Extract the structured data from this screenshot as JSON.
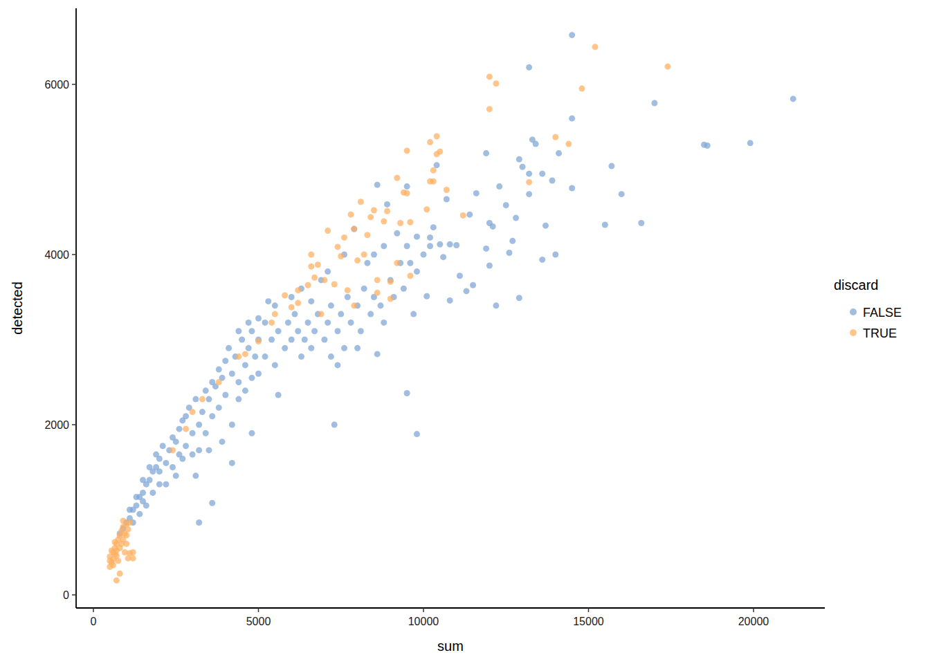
{
  "chart_data": {
    "type": "scatter",
    "x_label": "sum",
    "y_label": "detected",
    "legend_title": "discard",
    "legend": "right",
    "grid": false,
    "xlim": [
      -524,
      22160
    ],
    "ylim": [
      -154,
      6894
    ],
    "xticks": [
      0,
      5000,
      10000,
      15000,
      20000
    ],
    "yticks": [
      0,
      2000,
      4000,
      6000
    ],
    "series": [
      {
        "name": "FALSE",
        "color": "#7da5d6",
        "marker": "circle",
        "x": [
          14500,
          13200,
          21200,
          17000,
          14500,
          18500,
          18600,
          19900,
          13300,
          13400,
          11900,
          14100,
          12900,
          13000,
          15700,
          10400,
          13200,
          13600,
          13900,
          12300,
          14500,
          11600,
          13200,
          16000,
          12500,
          10700,
          11400,
          12800,
          12000,
          16600,
          15500,
          13700,
          12100,
          10300,
          11900,
          12600,
          13600,
          14000,
          12700,
          10500,
          10800,
          11000,
          10600,
          11100,
          11500,
          11300,
          12000,
          12200,
          12900,
          10800,
          10100,
          9500,
          9800,
          7300,
          8600,
          8600,
          8900,
          9500,
          9800,
          3200,
          3600,
          4200,
          4800,
          5600,
          1100,
          1200,
          1300,
          1400,
          1500,
          1600,
          1700,
          1800,
          1900,
          2000,
          1200,
          1400,
          1600,
          1800,
          2000,
          1300,
          1500,
          1700,
          1900,
          2100,
          1100,
          2000,
          2200,
          2300,
          2400,
          2500,
          2600,
          2700,
          2800,
          2900,
          2200,
          2400,
          2600,
          2800,
          3000,
          3100,
          3200,
          3300,
          3400,
          3500,
          3600,
          3700,
          3800,
          3900,
          4000,
          3200,
          3400,
          3600,
          3800,
          4000,
          4100,
          4200,
          4300,
          4400,
          4500,
          4600,
          4700,
          4800,
          4900,
          5000,
          4400,
          4600,
          4800,
          5000,
          5200,
          5200,
          5400,
          5500,
          5600,
          5800,
          5900,
          6000,
          6100,
          6200,
          6300,
          6400,
          6500,
          6600,
          6700,
          6800,
          7000,
          7100,
          7200,
          7400,
          7500,
          7600,
          7700,
          7800,
          8000,
          8100,
          8200,
          8400,
          8500,
          8700,
          8800,
          9000,
          9100,
          9300,
          9400,
          9600,
          9700,
          9800,
          10000,
          10200,
          7200,
          7400,
          8000,
          5000,
          5500,
          6000,
          6300,
          6600,
          5300,
          4700,
          4400,
          1500,
          2500,
          2700,
          3000,
          3100,
          3500,
          3900,
          4200,
          8300,
          8800,
          9200,
          7900,
          7600,
          6900,
          7100,
          8500,
          9500,
          10200,
          900,
          1000,
          800
        ],
        "values": [
          6580,
          6200,
          5830,
          5780,
          5600,
          5290,
          5280,
          5310,
          5350,
          5300,
          5190,
          5190,
          5120,
          5030,
          5040,
          5050,
          4950,
          4950,
          4870,
          4800,
          4780,
          4720,
          4710,
          4710,
          4580,
          4650,
          4470,
          4430,
          4370,
          4370,
          4350,
          4340,
          4330,
          4320,
          4070,
          4020,
          3940,
          4000,
          4160,
          4120,
          4120,
          4110,
          3970,
          3750,
          3640,
          3570,
          3870,
          3400,
          3490,
          3460,
          3510,
          2370,
          1890,
          2000,
          2830,
          4820,
          4590,
          4800,
          4210,
          850,
          1080,
          1550,
          1900,
          2350,
          900,
          1000,
          1050,
          1150,
          1200,
          1300,
          1350,
          1450,
          1500,
          1600,
          850,
          950,
          1050,
          1200,
          1300,
          1150,
          1350,
          1500,
          1650,
          1750,
          1000,
          1450,
          1550,
          1700,
          1850,
          1800,
          1950,
          2050,
          2100,
          2200,
          1300,
          1500,
          1650,
          1750,
          1900,
          2300,
          2000,
          2150,
          2400,
          2300,
          2500,
          2450,
          2650,
          2550,
          2750,
          1700,
          1900,
          2100,
          2200,
          2350,
          2900,
          2600,
          2800,
          2500,
          3000,
          2700,
          2900,
          3100,
          2800,
          3000,
          2300,
          2400,
          2550,
          2600,
          3200,
          2800,
          3000,
          2700,
          3100,
          2900,
          3200,
          3000,
          3300,
          3100,
          2800,
          3000,
          3200,
          2900,
          3100,
          3300,
          3000,
          3200,
          3400,
          3100,
          3300,
          2900,
          3500,
          3200,
          3400,
          3100,
          3600,
          3300,
          3500,
          3400,
          3200,
          3700,
          3500,
          3900,
          3600,
          3900,
          3300,
          3800,
          4000,
          4100,
          2800,
          2700,
          2900,
          3250,
          3400,
          3500,
          3600,
          3450,
          3450,
          3200,
          3100,
          1100,
          1400,
          1600,
          1650,
          1400,
          1700,
          1800,
          2000,
          3900,
          4100,
          4250,
          4300,
          4000,
          3700,
          3800,
          4000,
          4100,
          4200,
          780,
          850,
          720
        ]
      },
      {
        "name": "TRUE",
        "color": "#ffae5e",
        "marker": "circle",
        "x": [
          15200,
          17400,
          12000,
          12200,
          12000,
          14800,
          14000,
          14400,
          10400,
          10200,
          9500,
          10500,
          10400,
          10300,
          10200,
          10300,
          13200,
          9200,
          9400,
          9500,
          10700,
          11200,
          10100,
          8400,
          8100,
          8500,
          8800,
          8900,
          9300,
          9600,
          7800,
          7900,
          8300,
          7100,
          7600,
          7400,
          7500,
          8000,
          8200,
          6600,
          6800,
          6600,
          6700,
          7000,
          7300,
          6500,
          6200,
          5800,
          6200,
          6000,
          7700,
          8600,
          9000,
          9000,
          5500,
          5400,
          6900,
          5000,
          4400,
          4600,
          3800,
          3300,
          2800,
          3000,
          2400,
          7900,
          8600,
          9200,
          9600,
          500,
          500,
          550,
          600,
          600,
          650,
          700,
          700,
          750,
          800,
          800,
          850,
          900,
          900,
          950,
          1000,
          1000,
          1050,
          750,
          700,
          800,
          950,
          1100,
          1200,
          1200,
          1050,
          550,
          650,
          1100,
          900,
          500,
          600,
          700,
          850,
          1000,
          650
        ],
        "values": [
          6440,
          6210,
          6090,
          6010,
          5710,
          5950,
          5380,
          5300,
          5390,
          5320,
          5220,
          5210,
          5180,
          4990,
          4860,
          4860,
          4850,
          4900,
          4730,
          4720,
          4760,
          4460,
          4530,
          4440,
          4620,
          4520,
          4390,
          4510,
          4370,
          4380,
          4470,
          4300,
          4230,
          4280,
          4200,
          4090,
          3980,
          3930,
          4000,
          4000,
          3880,
          3860,
          3730,
          3700,
          3650,
          3640,
          3580,
          3520,
          3430,
          3380,
          3580,
          3550,
          3480,
          3680,
          3300,
          3200,
          3300,
          2980,
          2800,
          2830,
          2500,
          2300,
          1950,
          2150,
          1700,
          3400,
          3700,
          3900,
          3750,
          330,
          450,
          380,
          500,
          420,
          550,
          600,
          460,
          650,
          700,
          550,
          750,
          800,
          650,
          720,
          830,
          700,
          770,
          400,
          170,
          250,
          500,
          490,
          500,
          430,
          430,
          520,
          620,
          850,
          870,
          400,
          350,
          520,
          600,
          600,
          480
        ]
      }
    ]
  }
}
